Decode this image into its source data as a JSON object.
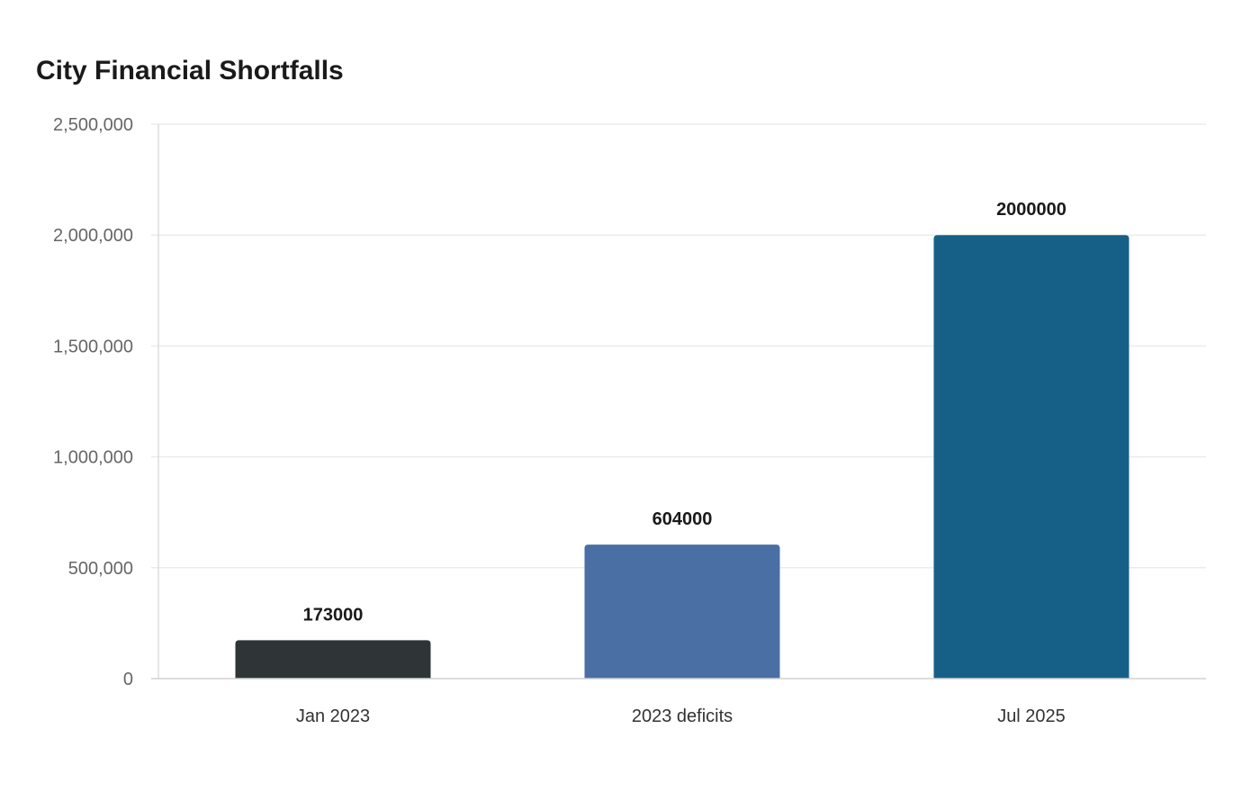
{
  "chart_data": {
    "type": "bar",
    "title": "City Financial Shortfalls",
    "xlabel": "",
    "ylabel": "",
    "categories": [
      "Jan 2023",
      "2023 deficits",
      "Jul 2025"
    ],
    "values": [
      173000,
      604000,
      2000000
    ],
    "data_labels": [
      "173000",
      "604000",
      "2000000"
    ],
    "colors": [
      "#2f3437",
      "#4a6fa5",
      "#166088"
    ],
    "ylim": [
      0,
      2500000
    ],
    "yticks": [
      0,
      500000,
      1000000,
      1500000,
      2000000,
      2500000
    ],
    "ytick_labels": [
      "0",
      "500,000",
      "1,000,000",
      "1,500,000",
      "2,000,000",
      "2,500,000"
    ],
    "grid": true,
    "legend": "none"
  }
}
